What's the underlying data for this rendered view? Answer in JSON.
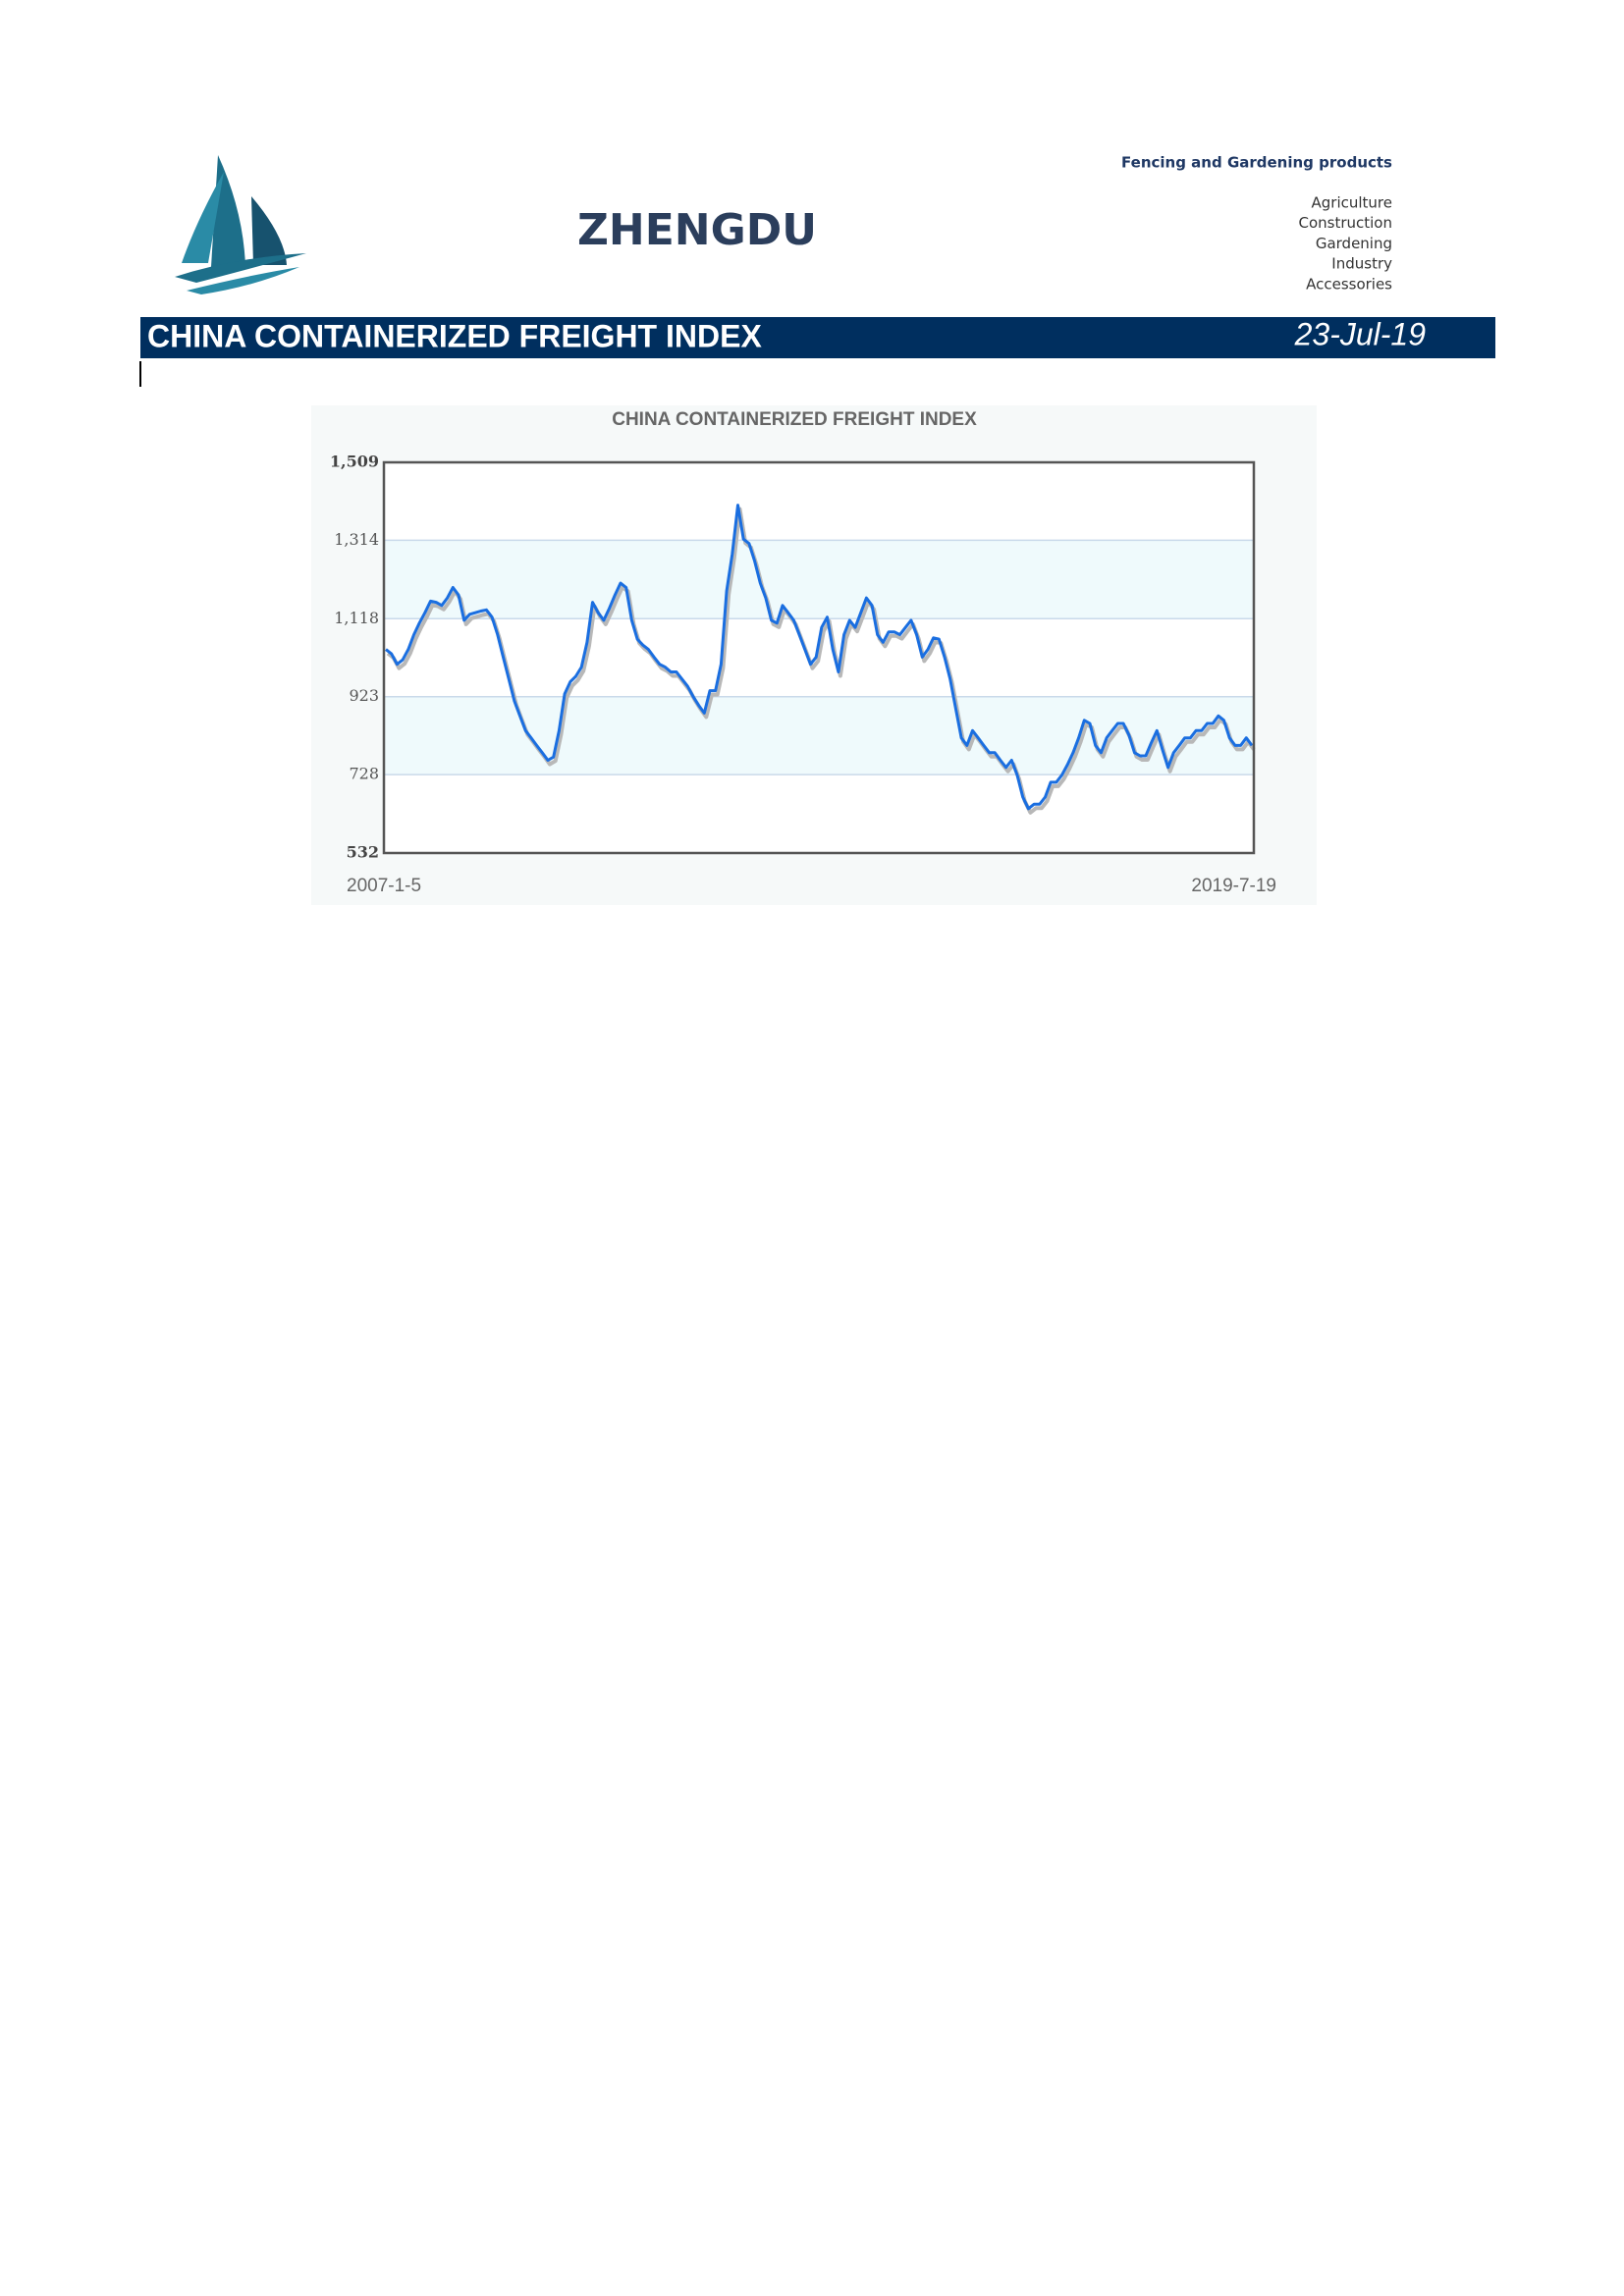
{
  "header": {
    "brand": "ZHENGDU",
    "tagline": "Fencing and Gardening products",
    "products": [
      "Agriculture",
      "Construction",
      "Gardening",
      "Industry",
      "Accessories"
    ]
  },
  "banner": {
    "title": "CHINA CONTAINERIZED FREIGHT INDEX",
    "date": "23-Jul-19"
  },
  "chart_data": {
    "type": "line",
    "title": "CHINA CONTAINERIZED FREIGHT INDEX",
    "color": "#1a6ee0",
    "ylim": [
      532,
      1509
    ],
    "yticks": [
      532,
      728,
      923,
      {
        "value": 1118,
        "label": "1,118"
      },
      {
        "value": 1314,
        "label": "1,314"
      },
      {
        "value": 1509,
        "label": "1,509"
      }
    ],
    "grid": true,
    "categories": [
      "2007-1-5",
      null,
      null,
      null,
      null,
      null,
      null,
      null,
      null,
      null,
      null,
      null,
      null,
      null,
      null,
      null,
      null,
      null,
      null,
      null,
      null,
      null,
      null,
      null,
      null,
      null,
      null,
      null,
      null,
      null,
      null,
      null,
      null,
      null,
      null,
      null,
      null,
      null,
      null,
      null,
      null,
      null,
      null,
      null,
      null,
      null,
      null,
      null,
      null,
      null,
      null,
      null,
      null,
      null,
      null,
      null,
      null,
      null,
      null,
      null,
      null,
      null,
      null,
      null,
      null,
      null,
      null,
      null,
      null,
      null,
      null,
      null,
      null,
      null,
      null,
      null,
      null,
      null,
      null,
      null,
      null,
      null,
      null,
      null,
      null,
      null,
      null,
      null,
      null,
      null,
      null,
      null,
      null,
      null,
      null,
      null,
      null,
      null,
      null,
      null,
      null,
      null,
      null,
      null,
      null,
      null,
      null,
      null,
      null,
      null,
      null,
      null,
      null,
      null,
      null,
      null,
      null,
      null,
      null,
      null,
      null,
      null,
      null,
      null,
      null,
      null,
      null,
      null,
      null,
      null,
      null,
      null,
      null,
      null,
      null,
      null,
      null,
      null,
      null,
      null,
      null,
      null,
      null,
      null,
      null,
      null,
      null,
      null,
      null,
      null,
      null,
      null,
      null,
      null,
      null,
      "2019-7-19"
    ],
    "values": [
      1041,
      1030,
      1004,
      1015,
      1041,
      1078,
      1107,
      1133,
      1162,
      1159,
      1151,
      1170,
      1196,
      1177,
      1114,
      1129,
      1133,
      1137,
      1140,
      1122,
      1078,
      1022,
      967,
      912,
      875,
      838,
      820,
      801,
      783,
      764,
      772,
      838,
      930,
      960,
      974,
      997,
      1059,
      1159,
      1133,
      1114,
      1144,
      1177,
      1207,
      1196,
      1114,
      1067,
      1052,
      1041,
      1022,
      1004,
      997,
      985,
      985,
      967,
      949,
      923,
      901,
      882,
      938,
      938,
      1004,
      1188,
      1280,
      1402,
      1317,
      1306,
      1262,
      1207,
      1170,
      1114,
      1107,
      1151,
      1133,
      1114,
      1078,
      1041,
      1004,
      1022,
      1096,
      1122,
      1041,
      985,
      1078,
      1114,
      1096,
      1133,
      1170,
      1151,
      1078,
      1059,
      1085,
      1085,
      1078,
      1096,
      1114,
      1078,
      1022,
      1041,
      1070,
      1067,
      1022,
      967,
      893,
      820,
      801,
      838,
      820,
      801,
      783,
      783,
      764,
      746,
      764,
      727,
      672,
      643,
      654,
      654,
      672,
      709,
      709,
      727,
      753,
      783,
      820,
      864,
      856,
      801,
      783,
      820,
      838,
      856,
      856,
      827,
      783,
      775,
      775,
      808,
      838,
      790,
      746,
      783,
      801,
      820,
      820,
      838,
      838,
      856,
      856,
      875,
      864,
      820,
      801,
      801,
      820,
      801
    ]
  }
}
